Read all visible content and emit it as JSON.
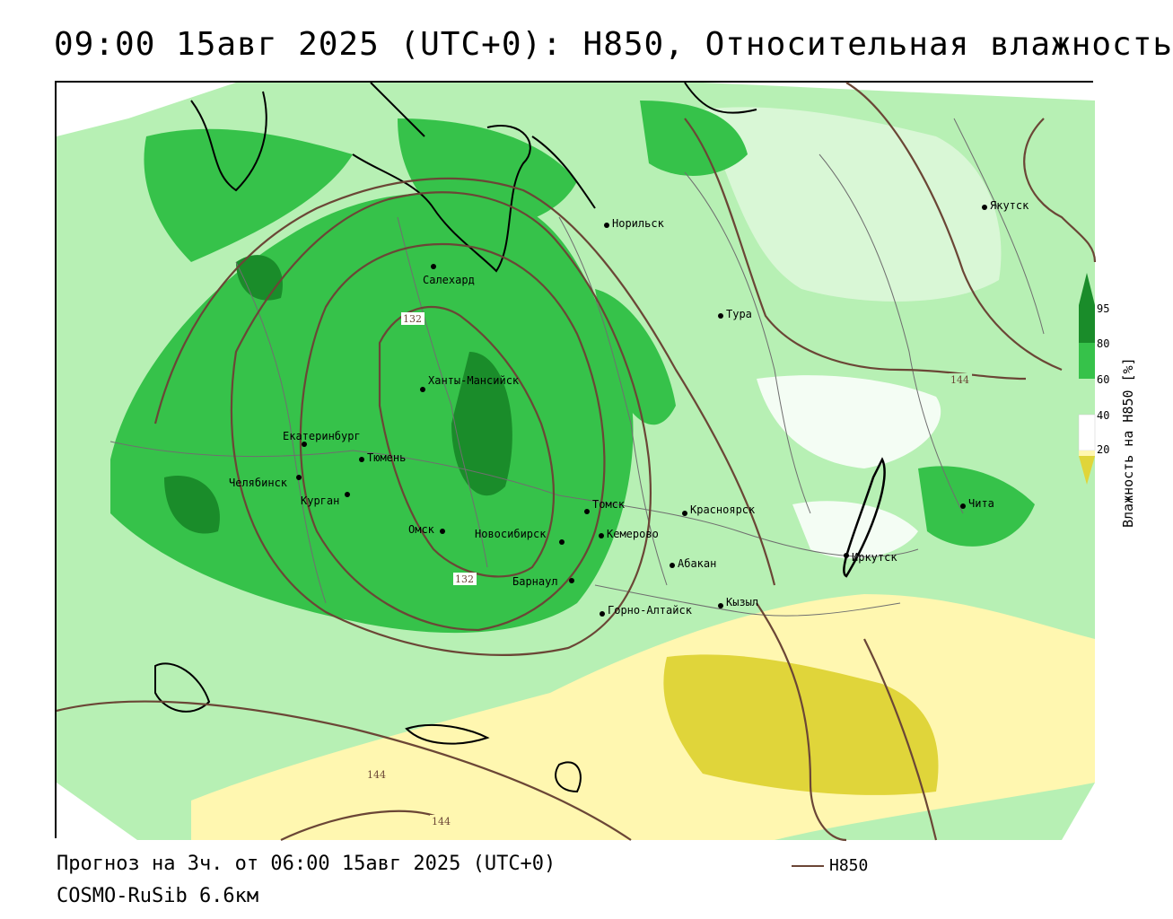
{
  "title": "09:00 15авг 2025 (UTC+0): H850, Относительная влажность",
  "footer": {
    "forecast": "Прогноз на 3ч. от 06:00 15авг 2025 (UTC+0)",
    "model": "COSMO-RuSib 6.6км",
    "legend_line_label": "H850"
  },
  "colorbar": {
    "title": "Влажность на H850 [%]",
    "ticks": [
      "95",
      "80",
      "60",
      "40",
      "20"
    ],
    "colors": {
      "very_high": "#1a8c2a",
      "high": "#36c24a",
      "mid": "#b7f0b4",
      "neutral": "#ffffff",
      "low": "#fff7b0",
      "very_low": "#e0d53a"
    }
  },
  "isoline_labels": [
    "132",
    "132",
    "144",
    "144",
    "144"
  ],
  "cities": [
    {
      "name": "Якутск"
    },
    {
      "name": "Норильск"
    },
    {
      "name": "Салехард"
    },
    {
      "name": "Тура"
    },
    {
      "name": "Ханты-Мансийск"
    },
    {
      "name": "Екатеринбург"
    },
    {
      "name": "Тюмень"
    },
    {
      "name": "Челябинск"
    },
    {
      "name": "Курган"
    },
    {
      "name": "Омск"
    },
    {
      "name": "Новосибирск"
    },
    {
      "name": "Томск"
    },
    {
      "name": "Кемерово"
    },
    {
      "name": "Красноярск"
    },
    {
      "name": "Барнаул"
    },
    {
      "name": "Абакан"
    },
    {
      "name": "Горно-Алтайск"
    },
    {
      "name": "Кызыл"
    },
    {
      "name": "Иркутск"
    },
    {
      "name": "Чита"
    }
  ]
}
